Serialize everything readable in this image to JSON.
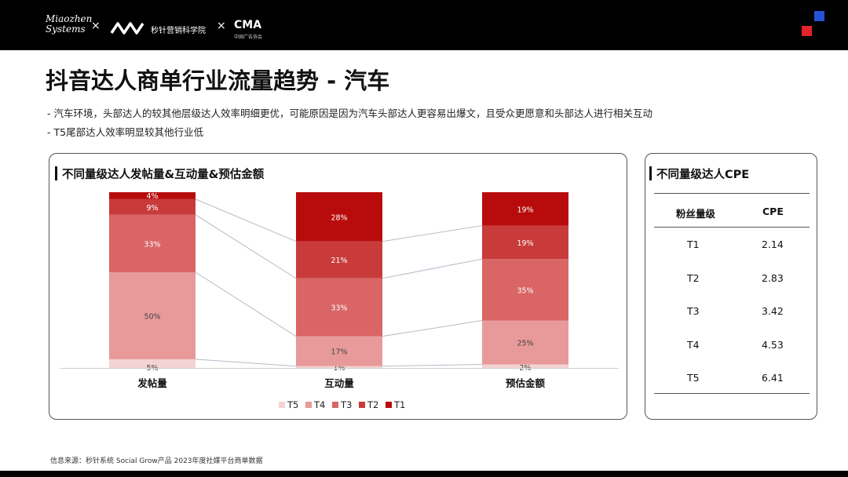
{
  "header": {
    "brand1": "Miaozhen Systems",
    "separator": "×",
    "brand2": "秒针营销科学院",
    "brand3": "CMA",
    "brand3_sub": "中国广告协会"
  },
  "title": "抖音达人商单行业流量趋势 - 汽车",
  "bullets": [
    "- 汽车环境，头部达人的较其他层级达人效率明细更优，可能原因是因为汽车头部达人更容易出爆文，且受众更愿意和头部达人进行相关互动",
    "- T5尾部达人效率明显较其他行业低"
  ],
  "left_panel": {
    "title": "不同量级达人发帖量&互动量&预估金额"
  },
  "right_panel": {
    "title": "不同量级达人CPE",
    "headers": [
      "粉丝量级",
      "CPE"
    ],
    "rows": [
      {
        "tier": "T1",
        "cpe": "2.14"
      },
      {
        "tier": "T2",
        "cpe": "2.83"
      },
      {
        "tier": "T3",
        "cpe": "3.42"
      },
      {
        "tier": "T4",
        "cpe": "4.53"
      },
      {
        "tier": "T5",
        "cpe": "6.41"
      }
    ]
  },
  "chart_data": {
    "type": "bar",
    "stacked": true,
    "percent": true,
    "categories": [
      "发帖量",
      "互动量",
      "预估金额"
    ],
    "series": [
      {
        "name": "T5",
        "color": "#f3d3d3",
        "values": [
          5,
          1,
          2
        ]
      },
      {
        "name": "T4",
        "color": "#e89a9a",
        "values": [
          50,
          17,
          25
        ]
      },
      {
        "name": "T3",
        "color": "#d96565",
        "values": [
          33,
          33,
          35
        ]
      },
      {
        "name": "T2",
        "color": "#c93b3b",
        "values": [
          9,
          21,
          19
        ]
      },
      {
        "name": "T1",
        "color": "#b80c0c",
        "values": [
          4,
          28,
          19
        ]
      }
    ],
    "ylim": [
      0,
      100
    ],
    "legend": "bottom"
  },
  "source": "信息来源：秒针系统  Social Grow产品  2023年度社媒平台商单数据"
}
